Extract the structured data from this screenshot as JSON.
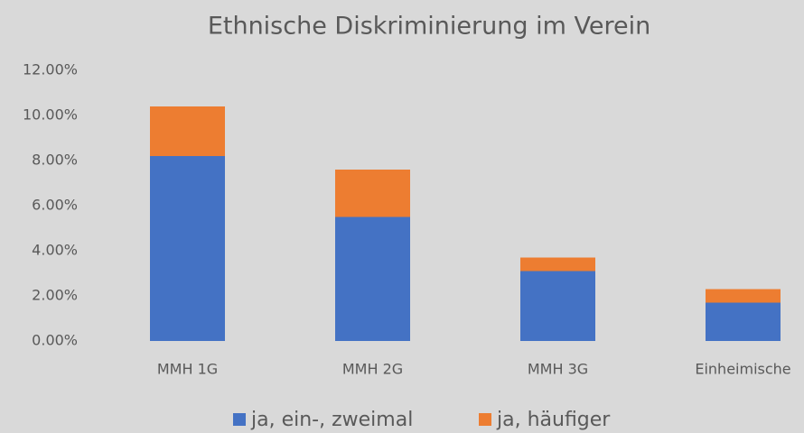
{
  "chart_data": {
    "type": "stacked_bar",
    "title": "Ethnische Diskriminierung im Verein",
    "categories": [
      "MMH 1G",
      "MMH 2G",
      "MMH 3G",
      "Einheimische"
    ],
    "series": [
      {
        "name": "ja, ein-, zweimal",
        "color": "#4472c4",
        "values": [
          8.2,
          5.5,
          3.1,
          1.7
        ]
      },
      {
        "name": "ja, häufiger",
        "color": "#ed7d31",
        "values": [
          2.2,
          2.1,
          0.6,
          0.6
        ]
      }
    ],
    "ylim": [
      0,
      12
    ],
    "yticks": [
      {
        "value": 0,
        "label": "0.00%"
      },
      {
        "value": 2,
        "label": "2.00%"
      },
      {
        "value": 4,
        "label": "4.00%"
      },
      {
        "value": 6,
        "label": "6.00%"
      },
      {
        "value": 8,
        "label": "8.00%"
      },
      {
        "value": 10,
        "label": "10.00%"
      },
      {
        "value": 12,
        "label": "12.00%"
      }
    ],
    "grid": false,
    "legend": "bottom"
  }
}
